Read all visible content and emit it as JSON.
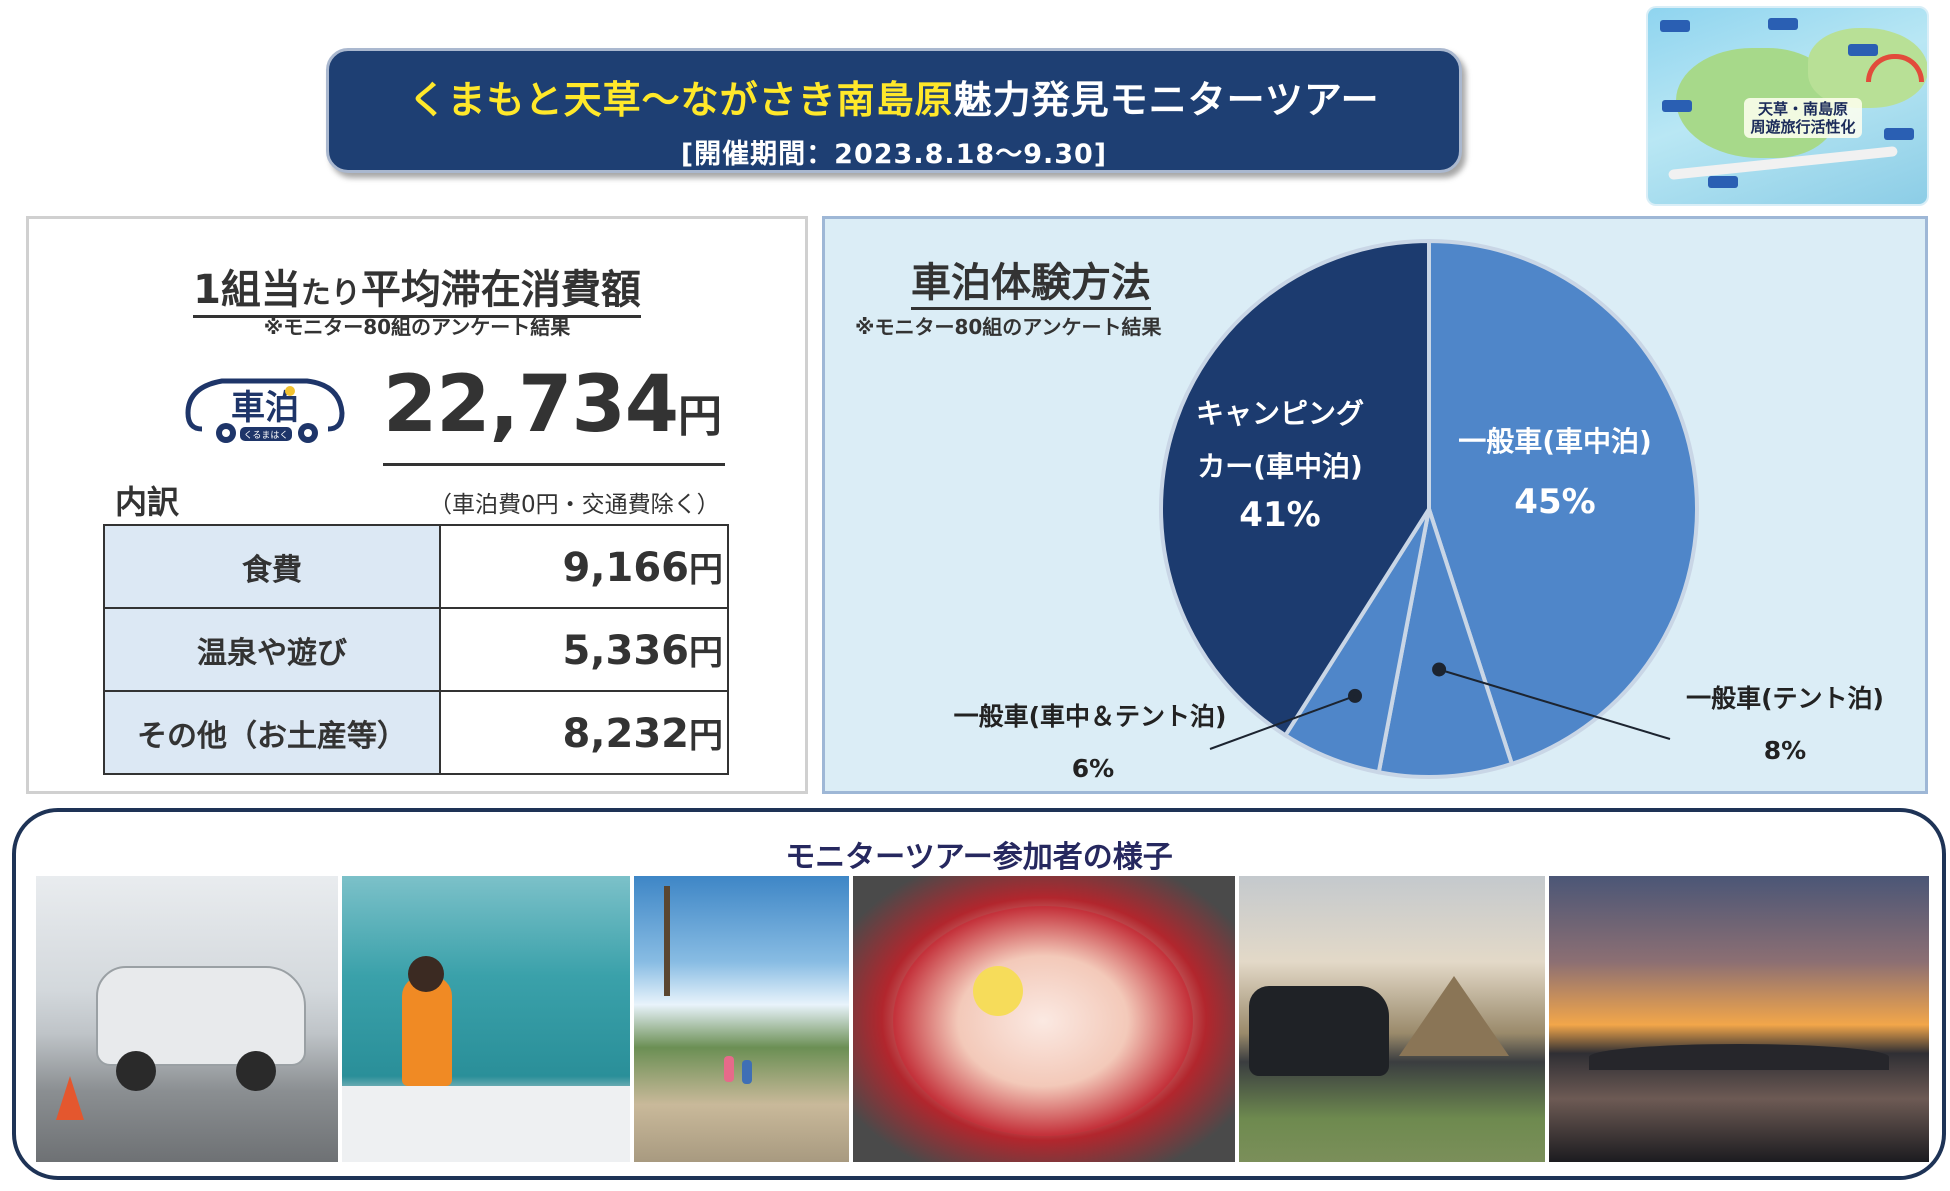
{
  "banner": {
    "title_highlight": "くまもと天草～ながさき南島原",
    "title_rest": "魅力発見モニターツアー",
    "period": "[開催期間：2023.8.18～9.30]"
  },
  "thumbnail": {
    "label_line1": "天草・南島原",
    "label_line2": "周遊旅行活性化"
  },
  "spending": {
    "title_part1": "1組当",
    "title_small": "たり",
    "title_part2": "平均滞在消費額",
    "note": "※モニター80組のアンケート結果",
    "logo_text": "車泊",
    "logo_sub": "くるまはく",
    "total_amount": "22,734",
    "yen": "円",
    "breakdown_label": "内訳",
    "breakdown_note": "（車泊費0円・交通費除く）",
    "rows": [
      {
        "category": "食費",
        "amount": "9,166"
      },
      {
        "category": "温泉や遊び",
        "amount": "5,336"
      },
      {
        "category": "その他（お土産等）",
        "amount": "8,232"
      }
    ]
  },
  "chart_data": {
    "type": "pie",
    "title": "車泊体験方法",
    "note": "※モニター80組のアンケート結果",
    "slices": [
      {
        "label": "一般車(車中泊)",
        "value": 45,
        "display": "45%",
        "color": "#4f86c9"
      },
      {
        "label": "一般車(テント泊)",
        "value": 8,
        "display": "8%",
        "color": "#4f86c9"
      },
      {
        "label": "一般車(車中＆テント泊)",
        "value": 6,
        "display": "6%",
        "color": "#4f86c9"
      },
      {
        "label_line1": "キャンピング",
        "label_line2": "カー(車中泊)",
        "value": 41,
        "display": "41%",
        "color": "#1c3b6f"
      }
    ],
    "start_angle": "12 o'clock",
    "direction": "clockwise",
    "slice_border_color": "#c9d6e6"
  },
  "photos": {
    "title": "モニターツアー参加者の様子",
    "count": 6
  }
}
